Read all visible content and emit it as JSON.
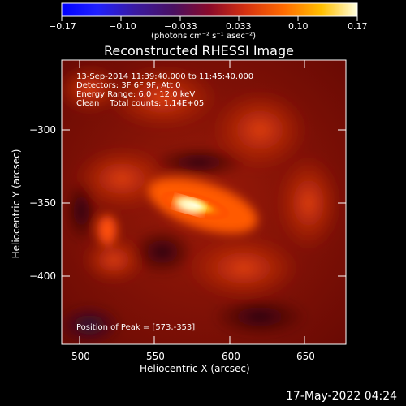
{
  "colorbar": {
    "tick_labels": [
      "−0.17",
      "−0.10",
      "−0.033",
      "0.033",
      "0.10",
      "0.17"
    ],
    "unit_label": "(photons cm⁻² s⁻¹ asec⁻²)"
  },
  "image": {
    "title": "Reconstructed RHESSI Image",
    "time_range": "13-Sep-2014 11:39:40.000 to 11:45:40.000",
    "detectors": "Detectors: 3F 6F 9F, Att 0",
    "energy_range": "Energy Range: 6.0 - 12.0 keV",
    "clean_line": "Clean    Total counts: 1.14E+05",
    "peak_position": "Position of Peak = [573,-353]",
    "peak_value": [
      573,
      -353
    ]
  },
  "axes": {
    "xlabel": "Heliocentric X (arcsec)",
    "ylabel": "Heliocentric Y (arcsec)",
    "x_ticks": [
      "500",
      "550",
      "600",
      "650"
    ],
    "y_ticks": [
      "−300",
      "−350",
      "−400"
    ]
  },
  "footer": {
    "timestamp": "17-May-2022 04:24"
  },
  "colors": {
    "background": "#000000",
    "foreground": "#ffffff",
    "peak": "#ffffcc",
    "hot": "#ff8000",
    "mid": "#c82800",
    "low": "#5a0000"
  }
}
